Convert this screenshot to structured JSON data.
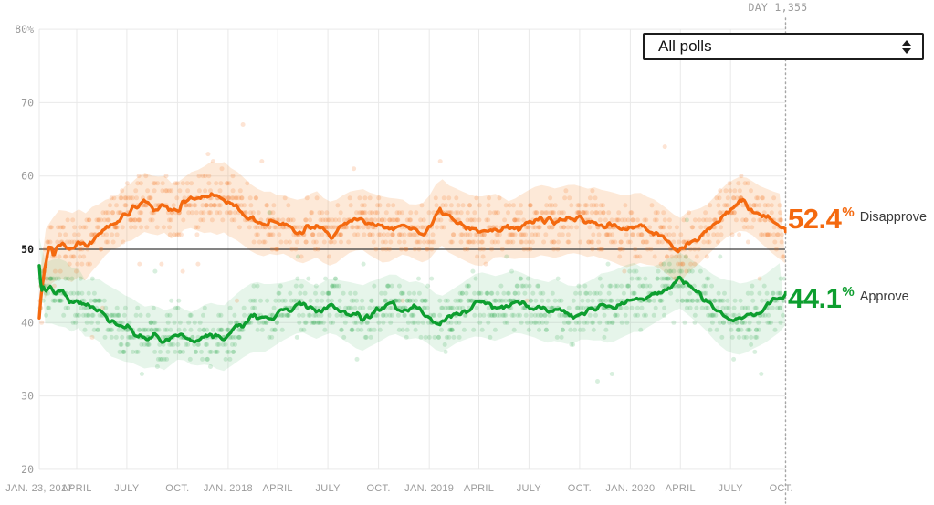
{
  "header": {
    "day_label": "DAY 1,355"
  },
  "controls": {
    "poll_filter": {
      "value": "All polls"
    }
  },
  "annotations": {
    "disapprove": {
      "value": "52.4",
      "percent_sign": "%",
      "label": "Disapprove"
    },
    "approve": {
      "value": "44.1",
      "percent_sign": "%",
      "label": "Approve"
    }
  },
  "colors": {
    "disapprove_orange": "#F4690F",
    "approve_green": "#0D9E2F",
    "band_orange": "#F5913A",
    "band_green": "#4FB768",
    "gridline": "#E9E9E9",
    "axis_text": "#9B9B9B",
    "axis_text_dark": "#191919",
    "reference_line": "#3A3A3A",
    "dotted_line": "#A6A6A6",
    "annot_text": "#3A3A3A"
  },
  "chart_data": {
    "type": "line+scatter",
    "x_unit": "day",
    "x_range_days": [
      0,
      1355
    ],
    "y_unit": "percent",
    "y_range": [
      20,
      80
    ],
    "grid": true,
    "reference_line": 50,
    "current_day": 1355,
    "x_ticks": [
      {
        "day": 0,
        "label": "JAN. 23, 2017"
      },
      {
        "day": 68,
        "label": "APRIL"
      },
      {
        "day": 159,
        "label": "JULY"
      },
      {
        "day": 251,
        "label": "OCT."
      },
      {
        "day": 343,
        "label": "JAN. 2018"
      },
      {
        "day": 433,
        "label": "APRIL"
      },
      {
        "day": 524,
        "label": "JULY"
      },
      {
        "day": 616,
        "label": "OCT."
      },
      {
        "day": 708,
        "label": "JAN. 2019"
      },
      {
        "day": 798,
        "label": "APRIL"
      },
      {
        "day": 889,
        "label": "JULY"
      },
      {
        "day": 981,
        "label": "OCT."
      },
      {
        "day": 1073,
        "label": "JAN. 2020"
      },
      {
        "day": 1164,
        "label": "APRIL"
      },
      {
        "day": 1255,
        "label": "JULY"
      },
      {
        "day": 1347,
        "label": "OCT."
      }
    ],
    "y_ticks": [
      {
        "value": 80,
        "label": "80%"
      },
      {
        "value": 70,
        "label": "70"
      },
      {
        "value": 60,
        "label": "60"
      },
      {
        "value": 50,
        "label": "50",
        "emphasis": true
      },
      {
        "value": 40,
        "label": "40"
      },
      {
        "value": 30,
        "label": "30"
      },
      {
        "value": 20,
        "label": "20"
      }
    ],
    "series": [
      {
        "name": "Disapprove",
        "final_value": 52.4,
        "days": [
          0,
          4,
          10,
          16,
          22,
          26,
          34,
          42,
          56,
          70,
          84,
          98,
          112,
          126,
          140,
          154,
          168,
          182,
          196,
          210,
          224,
          238,
          252,
          266,
          280,
          294,
          308,
          322,
          336,
          350,
          364,
          378,
          392,
          406,
          420,
          434,
          448,
          462,
          476,
          490,
          504,
          518,
          532,
          546,
          560,
          574,
          588,
          602,
          616,
          630,
          644,
          658,
          672,
          686,
          700,
          714,
          728,
          742,
          756,
          770,
          784,
          798,
          812,
          826,
          840,
          854,
          868,
          882,
          896,
          910,
          924,
          938,
          952,
          966,
          980,
          994,
          1008,
          1022,
          1036,
          1050,
          1064,
          1078,
          1092,
          1106,
          1120,
          1134,
          1148,
          1162,
          1176,
          1190,
          1204,
          1218,
          1232,
          1246,
          1260,
          1274,
          1288,
          1302,
          1316,
          1330,
          1344,
          1355
        ],
        "values": [
          41.2,
          44.6,
          47.6,
          49.6,
          50.4,
          48.8,
          50.6,
          50.9,
          50.0,
          50.9,
          50.3,
          51.5,
          52.2,
          53.4,
          53.6,
          54.8,
          55.2,
          56.0,
          56.6,
          55.6,
          56.4,
          55.2,
          55.5,
          56.4,
          57.0,
          56.6,
          57.3,
          56.8,
          57.1,
          56.2,
          55.7,
          54.6,
          53.9,
          53.4,
          53.6,
          53.2,
          53.4,
          52.7,
          52.4,
          53.0,
          53.4,
          52.4,
          52.0,
          52.8,
          53.6,
          53.9,
          54.1,
          53.4,
          53.0,
          52.5,
          52.7,
          53.0,
          52.6,
          52.4,
          52.3,
          53.6,
          55.3,
          54.2,
          53.7,
          53.2,
          52.7,
          52.4,
          52.6,
          53.2,
          53.0,
          52.6,
          53.0,
          53.4,
          53.6,
          54.0,
          53.8,
          53.5,
          53.9,
          54.2,
          54.0,
          53.6,
          53.8,
          53.4,
          53.2,
          52.8,
          52.4,
          52.7,
          52.9,
          52.4,
          52.2,
          51.4,
          50.6,
          49.7,
          50.8,
          51.4,
          52.0,
          53.0,
          54.2,
          55.2,
          55.8,
          56.3,
          56.0,
          55.2,
          54.5,
          53.8,
          53.2,
          52.4
        ]
      },
      {
        "name": "Approve",
        "final_value": 44.1,
        "days": [
          0,
          2,
          4,
          8,
          12,
          18,
          24,
          28,
          42,
          56,
          70,
          84,
          98,
          112,
          126,
          140,
          154,
          168,
          182,
          196,
          210,
          224,
          238,
          252,
          266,
          280,
          294,
          308,
          322,
          336,
          350,
          364,
          378,
          392,
          406,
          420,
          434,
          448,
          462,
          476,
          490,
          504,
          518,
          532,
          546,
          560,
          574,
          588,
          602,
          616,
          630,
          644,
          658,
          672,
          686,
          700,
          714,
          728,
          742,
          756,
          770,
          784,
          798,
          812,
          826,
          840,
          854,
          868,
          882,
          896,
          910,
          924,
          938,
          952,
          966,
          980,
          994,
          1008,
          1022,
          1036,
          1050,
          1064,
          1078,
          1092,
          1106,
          1120,
          1134,
          1148,
          1162,
          1176,
          1190,
          1204,
          1218,
          1232,
          1246,
          1260,
          1274,
          1288,
          1302,
          1316,
          1330,
          1344,
          1355
        ],
        "values": [
          47.5,
          45.5,
          43.8,
          44.6,
          44.0,
          44.8,
          44.2,
          43.9,
          44.4,
          42.9,
          43.4,
          41.8,
          42.2,
          41.6,
          40.3,
          39.8,
          39.2,
          38.9,
          38.3,
          37.8,
          38.4,
          37.4,
          38.0,
          38.6,
          38.2,
          37.8,
          38.3,
          38.6,
          38.1,
          37.9,
          38.8,
          39.6,
          40.4,
          40.9,
          40.5,
          40.8,
          41.2,
          41.6,
          42.1,
          42.4,
          41.8,
          41.4,
          42.0,
          42.4,
          41.9,
          41.5,
          41.0,
          40.6,
          41.2,
          41.6,
          42.2,
          42.6,
          42.0,
          41.6,
          41.8,
          41.4,
          40.4,
          39.7,
          40.3,
          41.0,
          41.6,
          42.2,
          42.6,
          42.3,
          41.9,
          42.2,
          42.6,
          42.9,
          42.4,
          42.1,
          41.7,
          41.4,
          41.8,
          41.2,
          40.9,
          41.3,
          41.7,
          41.9,
          42.3,
          42.0,
          42.5,
          43.0,
          43.4,
          43.1,
          43.5,
          43.8,
          44.6,
          45.2,
          45.8,
          45.1,
          44.3,
          43.6,
          42.6,
          41.7,
          41.1,
          40.7,
          40.4,
          40.8,
          41.3,
          41.8,
          42.6,
          43.4,
          44.1
        ]
      }
    ],
    "band_halfwidth_pct": 4.2,
    "scatter_style": {
      "integer_rounding": true,
      "jitter_pct": 4.3,
      "outlier_rate": 0.045,
      "dot_radius": 2.5,
      "step_days": 2
    },
    "legend_position": "right-of-line-end"
  }
}
